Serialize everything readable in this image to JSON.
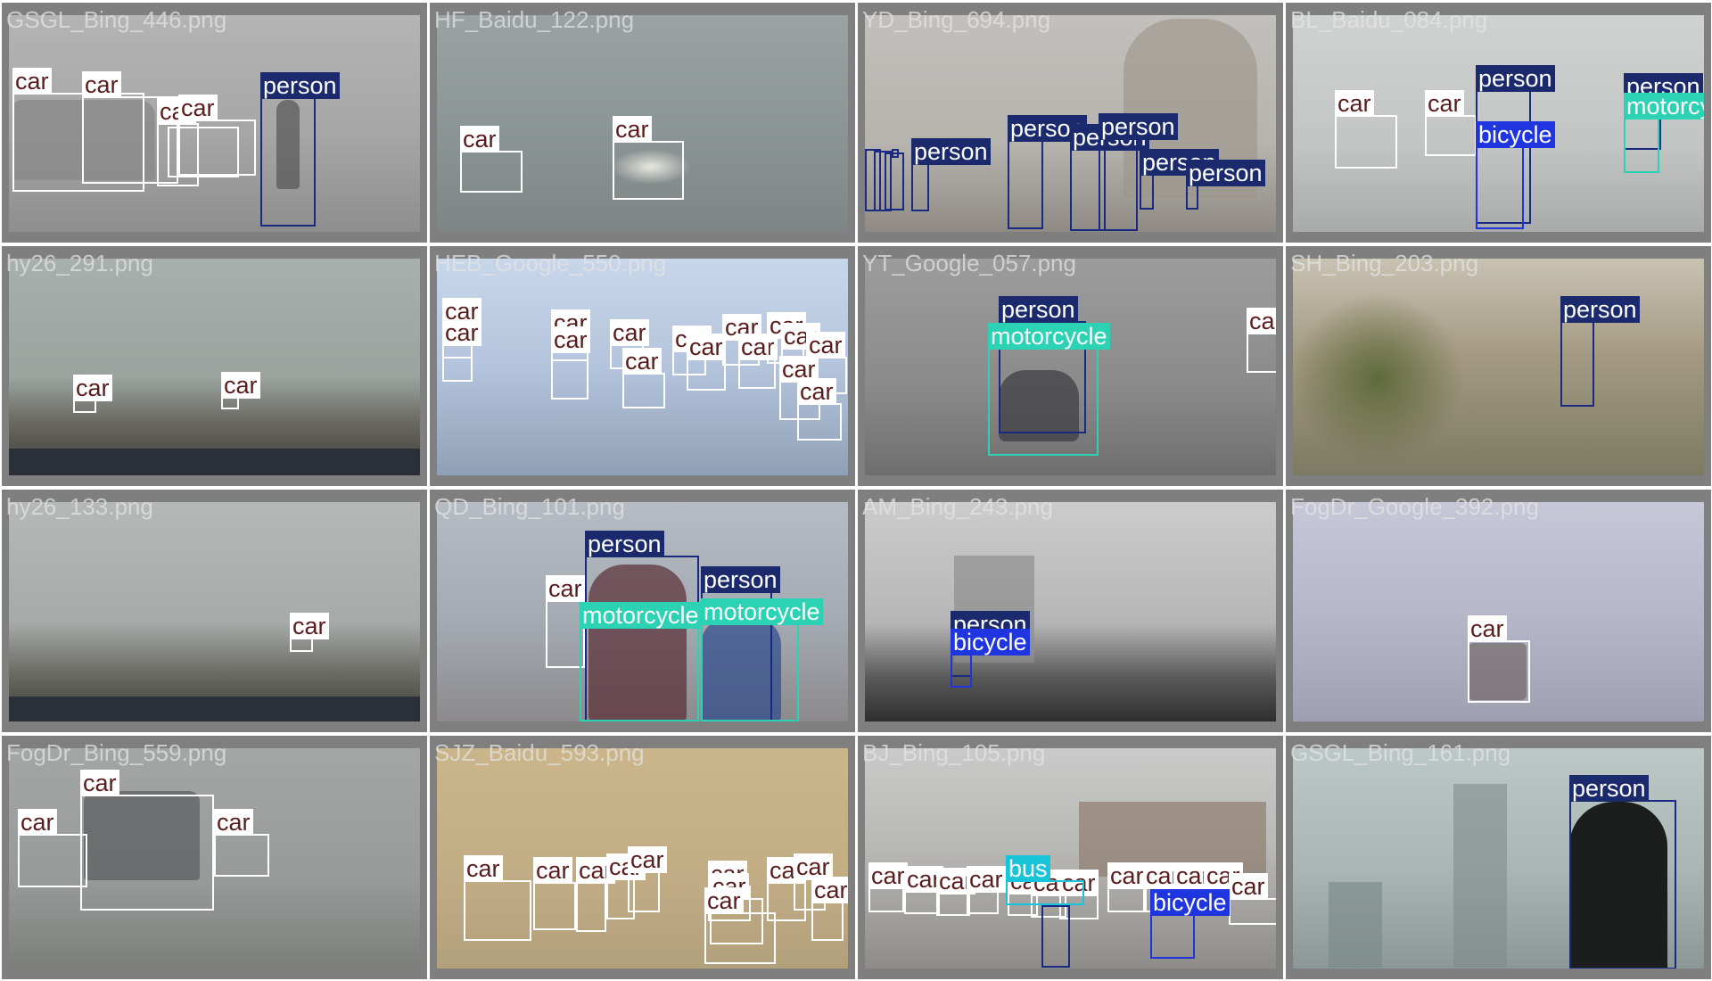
{
  "grid": {
    "tiles": [
      {
        "filename": "GSGL_Bing_446.png",
        "scene": "foggy road with parked suv and walking person",
        "detections": [
          {
            "label": "car"
          },
          {
            "label": "car"
          },
          {
            "label": "car"
          },
          {
            "label": "car"
          },
          {
            "label": "car"
          },
          {
            "label": "person"
          }
        ]
      },
      {
        "filename": "HF_Baidu_122.png",
        "scene": "car with headlights in dense fog",
        "detections": [
          {
            "label": "car"
          },
          {
            "label": "car"
          }
        ]
      },
      {
        "filename": "YD_Bing_694.png",
        "scene": "people running near India Gate in smog",
        "detections": [
          {
            "label": "person"
          },
          {
            "label": "person"
          },
          {
            "label": "person"
          },
          {
            "label": "person"
          },
          {
            "label": "person"
          },
          {
            "label": "person"
          },
          {
            "label": "person"
          },
          {
            "label": "person"
          },
          {
            "label": "person"
          },
          {
            "label": "person"
          }
        ]
      },
      {
        "filename": "BL_Baidu_084.png",
        "scene": "road with cars, cyclist and motorcyclist in haze",
        "detections": [
          {
            "label": "car"
          },
          {
            "label": "car"
          },
          {
            "label": "person"
          },
          {
            "label": "bicycle"
          },
          {
            "label": "person"
          },
          {
            "label": "motorcycle"
          }
        ]
      },
      {
        "filename": "hy26_291.png",
        "scene": "dashcam view of foggy highway",
        "detections": [
          {
            "label": "car"
          },
          {
            "label": "car"
          }
        ]
      },
      {
        "filename": "HEB_Google_550.png",
        "scene": "congested traffic in blue haze",
        "detections": [
          {
            "label": "car"
          },
          {
            "label": "car"
          },
          {
            "label": "car"
          },
          {
            "label": "car"
          },
          {
            "label": "car"
          },
          {
            "label": "car"
          },
          {
            "label": "car"
          },
          {
            "label": "car"
          },
          {
            "label": "car"
          },
          {
            "label": "car"
          },
          {
            "label": "car"
          },
          {
            "label": "car"
          },
          {
            "label": "car"
          },
          {
            "label": "car"
          },
          {
            "label": "car"
          }
        ]
      },
      {
        "filename": "YT_Google_057.png",
        "scene": "motorcyclist riding in grey fog",
        "detections": [
          {
            "label": "person"
          },
          {
            "label": "motorcycle"
          },
          {
            "label": "car"
          }
        ]
      },
      {
        "filename": "SH_Bing_203.png",
        "scene": "park path with pedestrian in smog",
        "detections": [
          {
            "label": "person"
          }
        ]
      },
      {
        "filename": "hy26_133.png",
        "scene": "dashcam view of foggy highway",
        "detections": [
          {
            "label": "car"
          }
        ]
      },
      {
        "filename": "QD_Bing_101.png",
        "scene": "scooter riders wearing masks in haze",
        "detections": [
          {
            "label": "person"
          },
          {
            "label": "person"
          },
          {
            "label": "car"
          },
          {
            "label": "motorcycle"
          },
          {
            "label": "motorcycle"
          }
        ]
      },
      {
        "filename": "AM_Bing_243.png",
        "scene": "cyclist on bridge in grey smog",
        "detections": [
          {
            "label": "person"
          },
          {
            "label": "bicycle"
          }
        ]
      },
      {
        "filename": "FogDr_Google_392.png",
        "scene": "bus in foggy park",
        "detections": [
          {
            "label": "car"
          }
        ]
      },
      {
        "filename": "FogDr_Bing_559.png",
        "scene": "suv on foggy road",
        "detections": [
          {
            "label": "car"
          },
          {
            "label": "car"
          },
          {
            "label": "car"
          }
        ]
      },
      {
        "filename": "SJZ_Baidu_593.png",
        "scene": "cars in yellow-brown smog",
        "detections": [
          {
            "label": "car"
          },
          {
            "label": "car"
          },
          {
            "label": "car"
          },
          {
            "label": "car"
          },
          {
            "label": "car"
          },
          {
            "label": "car"
          },
          {
            "label": "car"
          },
          {
            "label": "car"
          },
          {
            "label": "car"
          },
          {
            "label": "car"
          },
          {
            "label": "car"
          }
        ]
      },
      {
        "filename": "BJ_Bing_105.png",
        "scene": "Tiananmen square traffic in smog",
        "detections": [
          {
            "label": "car"
          },
          {
            "label": "car"
          },
          {
            "label": "car"
          },
          {
            "label": "car"
          },
          {
            "label": "car"
          },
          {
            "label": "car"
          },
          {
            "label": "car"
          },
          {
            "label": "car"
          },
          {
            "label": "car"
          },
          {
            "label": "car"
          },
          {
            "label": "car"
          },
          {
            "label": "car"
          },
          {
            "label": "bus"
          },
          {
            "label": "person"
          },
          {
            "label": "bicycle"
          }
        ]
      },
      {
        "filename": "GSGL_Bing_161.png",
        "scene": "masked person among skyscrapers in smog",
        "detections": [
          {
            "label": "person"
          }
        ]
      }
    ]
  },
  "colors": {
    "car": "#ffffff",
    "person": "#1a2a6c",
    "motorcycle": "#2cd2b4",
    "bicycle": "#1f35e0",
    "bus": "#18c4d8"
  }
}
